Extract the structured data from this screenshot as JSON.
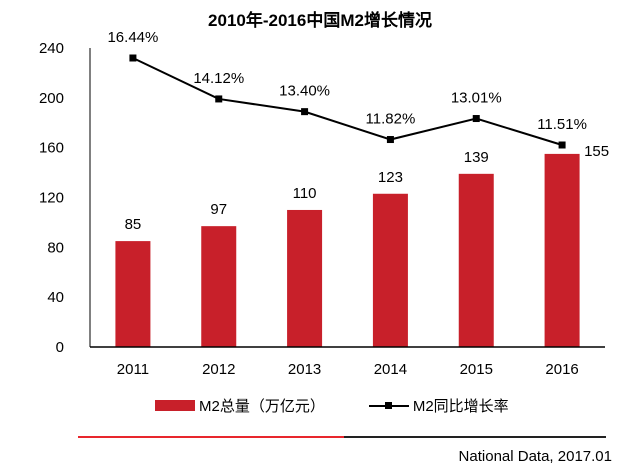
{
  "chart_data": {
    "type": "bar",
    "title": "2010年-2016中国M2增长情况",
    "categories": [
      "2011",
      "2012",
      "2013",
      "2014",
      "2015",
      "2016"
    ],
    "series": [
      {
        "name": "M2总量（万亿元）",
        "type": "bar",
        "color": "#c8202a",
        "values": [
          85,
          97,
          110,
          123,
          139,
          155
        ],
        "labels": [
          "85",
          "97",
          "110",
          "123",
          "139",
          "155"
        ]
      },
      {
        "name": "M2同比增长率",
        "type": "line",
        "color": "#000000",
        "values": [
          16.44,
          14.12,
          13.4,
          11.82,
          13.01,
          11.51
        ],
        "labels": [
          "16.44%",
          "14.12%",
          "13.40%",
          "11.82%",
          "13.01%",
          "11.51%"
        ]
      }
    ],
    "yticks": [
      "0",
      "40",
      "80",
      "120",
      "160",
      "200",
      "240"
    ],
    "ylim": [
      0,
      240
    ],
    "xlabel": "",
    "ylabel": "",
    "grid": false,
    "legend": "bottom"
  },
  "source": "National Data, 2017.01"
}
